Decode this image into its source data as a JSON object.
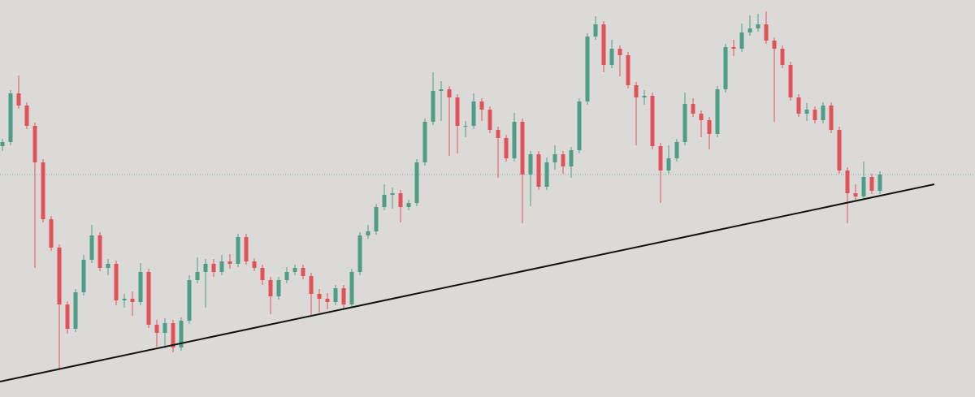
{
  "chart_data": {
    "type": "candlestick",
    "xlim": [
      -0.3,
      119.7
    ],
    "ylim": [
      0,
      489
    ],
    "up_color": "#4f9d86",
    "down_color": "#df5358",
    "price_line": {
      "value": 274,
      "color": "#7fb3a4"
    },
    "trendline": {
      "x": [
        -0.3,
        114.7
      ],
      "y": [
        19,
        262
      ],
      "color": "#111111"
    },
    "open": [
      309,
      314,
      374,
      359,
      334,
      289,
      219,
      184,
      114,
      84,
      129,
      169,
      199,
      159,
      164,
      119,
      121,
      117,
      154,
      89,
      79,
      91,
      61,
      94,
      144,
      154,
      164,
      154,
      167,
      164,
      197,
      167,
      159,
      144,
      124,
      144,
      154,
      159,
      149,
      127,
      121,
      117,
      134,
      114,
      154,
      199,
      204,
      234,
      249,
      251,
      234,
      239,
      289,
      339,
      377,
      379,
      369,
      334,
      334,
      364,
      354,
      329,
      319,
      294,
      339,
      274,
      299,
      259,
      289,
      299,
      284,
      304,
      364,
      444,
      459,
      409,
      429,
      421,
      384,
      369,
      371,
      309,
      279,
      294,
      314,
      361,
      349,
      341,
      324,
      379,
      431,
      429,
      449,
      454,
      459,
      439,
      429,
      409,
      369,
      349,
      354,
      341,
      359,
      329,
      279,
      251,
      247,
      271,
      254
    ],
    "high": [
      318,
      378,
      396,
      363,
      338,
      293,
      223,
      188,
      118,
      133,
      175,
      212,
      203,
      170,
      168,
      127,
      130,
      165,
      158,
      95,
      97,
      95,
      98,
      150,
      172,
      170,
      170,
      175,
      176,
      201,
      201,
      171,
      163,
      148,
      148,
      160,
      163,
      163,
      153,
      133,
      128,
      138,
      138,
      158,
      203,
      212,
      238,
      262,
      258,
      255,
      243,
      293,
      343,
      400,
      389,
      383,
      373,
      340,
      374,
      368,
      358,
      333,
      323,
      350,
      343,
      303,
      303,
      295,
      310,
      303,
      308,
      368,
      448,
      469,
      463,
      440,
      433,
      425,
      388,
      378,
      375,
      313,
      310,
      318,
      375,
      368,
      353,
      345,
      383,
      435,
      440,
      460,
      470,
      472,
      475,
      443,
      433,
      413,
      373,
      362,
      358,
      363,
      363,
      333,
      283,
      262,
      290,
      275,
      278
    ],
    "low": [
      303,
      310,
      355,
      330,
      159,
      215,
      180,
      34,
      78,
      80,
      125,
      165,
      155,
      150,
      113,
      110,
      100,
      113,
      85,
      62,
      60,
      55,
      57,
      90,
      140,
      110,
      148,
      150,
      158,
      160,
      163,
      155,
      138,
      102,
      120,
      140,
      150,
      145,
      100,
      104,
      108,
      113,
      108,
      110,
      150,
      195,
      200,
      230,
      232,
      215,
      230,
      235,
      285,
      335,
      340,
      297,
      300,
      320,
      330,
      340,
      325,
      270,
      290,
      290,
      214,
      235,
      255,
      255,
      280,
      275,
      270,
      300,
      360,
      440,
      400,
      405,
      395,
      380,
      310,
      360,
      305,
      239,
      275,
      290,
      310,
      345,
      320,
      305,
      320,
      375,
      420,
      425,
      445,
      450,
      435,
      339,
      405,
      365,
      345,
      340,
      337,
      337,
      325,
      275,
      214,
      243,
      243,
      250,
      250
    ],
    "close": [
      314,
      374,
      359,
      334,
      289,
      219,
      184,
      114,
      84,
      129,
      169,
      199,
      159,
      164,
      119,
      121,
      117,
      154,
      89,
      79,
      91,
      61,
      94,
      144,
      154,
      164,
      154,
      167,
      164,
      197,
      167,
      159,
      144,
      124,
      144,
      154,
      159,
      149,
      127,
      121,
      117,
      134,
      114,
      154,
      199,
      204,
      234,
      249,
      251,
      234,
      239,
      289,
      339,
      377,
      379,
      369,
      334,
      334,
      364,
      354,
      329,
      319,
      294,
      339,
      274,
      299,
      259,
      289,
      299,
      284,
      304,
      364,
      444,
      459,
      409,
      429,
      421,
      384,
      369,
      371,
      309,
      279,
      294,
      314,
      361,
      349,
      341,
      324,
      379,
      431,
      429,
      449,
      454,
      459,
      439,
      429,
      409,
      369,
      349,
      354,
      341,
      359,
      329,
      279,
      251,
      247,
      271,
      254,
      274
    ]
  }
}
